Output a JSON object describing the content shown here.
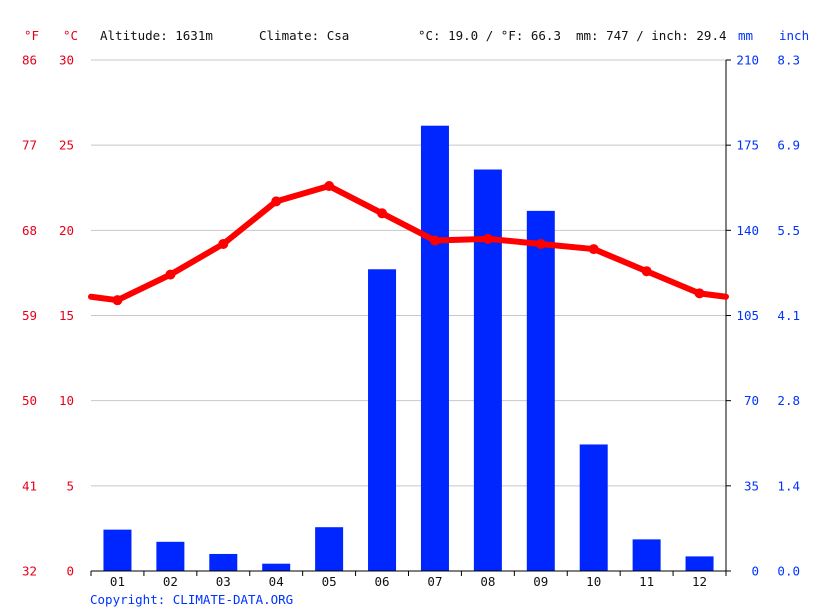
{
  "header": {
    "f_unit": "°F",
    "c_unit": "°C",
    "altitude": "Altitude: 1631m",
    "climate": "Climate: Csa",
    "avg_temp": "°C: 19.0 / °F: 66.3",
    "precip": "mm: 747 / inch: 29.4",
    "mm_unit": "mm",
    "inch_unit": "inch"
  },
  "copyright": "Copyright: CLIMATE-DATA.ORG",
  "chart_data": {
    "type": "bar",
    "categories": [
      "01",
      "02",
      "03",
      "04",
      "05",
      "06",
      "07",
      "08",
      "09",
      "10",
      "11",
      "12"
    ],
    "precipitation_mm": [
      17,
      12,
      7,
      3,
      18,
      124,
      183,
      165,
      148,
      52,
      13,
      6
    ],
    "temperature_c": [
      15.9,
      17.4,
      19.2,
      21.7,
      22.6,
      21.0,
      19.4,
      19.5,
      19.2,
      18.9,
      17.6,
      16.3
    ],
    "temp_line_color": "#ff0000",
    "bar_color": "#0026ff",
    "y_left_celsius_ticks": [
      "30",
      "25",
      "20",
      "15",
      "10",
      "5",
      "0"
    ],
    "y_left_fahrenheit_ticks": [
      "86",
      "77",
      "68",
      "59",
      "50",
      "41",
      "32"
    ],
    "y_right_mm_ticks": [
      "210",
      "175",
      "140",
      "105",
      "70",
      "35",
      "0"
    ],
    "y_right_inch_ticks": [
      "8.3",
      "6.9",
      "5.5",
      "4.1",
      "2.8",
      "1.4",
      "0.0"
    ],
    "ylim_celsius": [
      0,
      30
    ],
    "ylim_mm": [
      0,
      210
    ],
    "grid": true
  }
}
